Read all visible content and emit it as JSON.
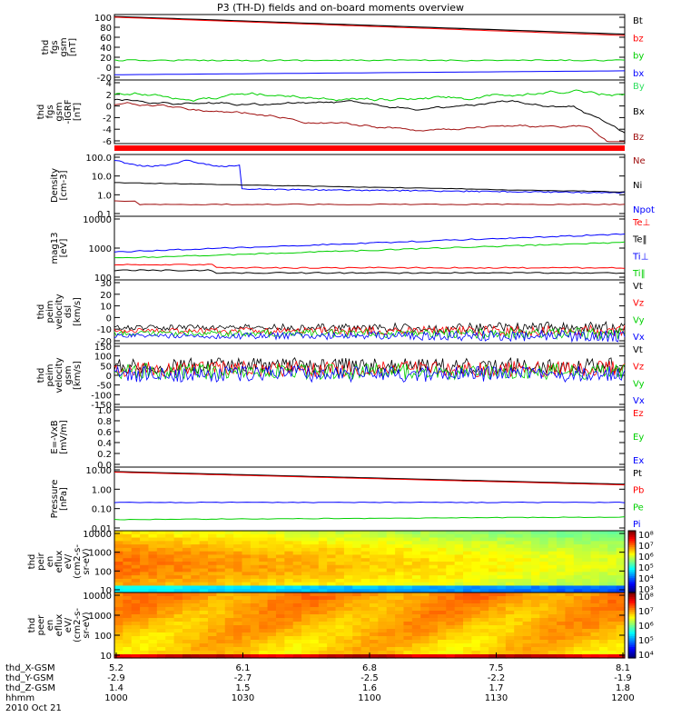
{
  "title": "P3 (TH-D) fields and on-board moments overview",
  "colors": {
    "black": "#000000",
    "red": "#ff0000",
    "darkred": "#a01010",
    "green": "#00d000",
    "blue": "#0000ff",
    "brightgreen": "#30e060"
  },
  "chart_data": [
    {
      "type": "line",
      "ylabel": [
        "thd",
        "fgs",
        "gsm",
        "[nT]"
      ],
      "yticks": [
        "100",
        "80",
        "60",
        "40",
        "20",
        "0",
        "-20"
      ],
      "ylim": [
        -30,
        100
      ],
      "legend": [
        {
          "name": "Bt",
          "color": "#000000"
        },
        {
          "name": "bz",
          "color": "#ff0000"
        },
        {
          "name": "by",
          "color": "#00d000"
        },
        {
          "name": "bx",
          "color": "#0000ff"
        }
      ]
    },
    {
      "type": "line",
      "ylabel": [
        "thd",
        "fgs",
        "gsm",
        "-IGRF",
        "[nT]"
      ],
      "yticks": [
        "4",
        "2",
        "0",
        "-2",
        "-4",
        "-6"
      ],
      "ylim": [
        -7.5,
        4
      ],
      "legend": [
        {
          "name": "By",
          "color": "#30e060"
        },
        {
          "name": "Bx",
          "color": "#000000"
        },
        {
          "name": "Bz",
          "color": "#a01010"
        }
      ]
    },
    {
      "type": "line",
      "ylabel": [
        "Density",
        "[cm-3]"
      ],
      "yticks": [
        "100.0",
        "10.0",
        "1.0",
        "0.1"
      ],
      "ylim": [
        0.07,
        300
      ],
      "legend": [
        {
          "name": "Ne",
          "color": "#a01010"
        },
        {
          "name": "Ni",
          "color": "#000000"
        },
        {
          "name": "Npot",
          "color": "#0000ff"
        }
      ]
    },
    {
      "type": "line",
      "ylabel": [
        "mag13",
        "[eV]"
      ],
      "yticks": [
        "10000",
        "1000",
        "100"
      ],
      "ylim": [
        100,
        13000
      ],
      "legend": [
        {
          "name": "Te⊥",
          "color": "#ff0000"
        },
        {
          "name": "Te‖",
          "color": "#000000"
        },
        {
          "name": "Ti⊥",
          "color": "#0000ff"
        },
        {
          "name": "Ti‖",
          "color": "#00d000"
        }
      ]
    },
    {
      "type": "line",
      "ylabel": [
        "thd",
        "peim",
        "velocity",
        "dsl",
        "[km/s]"
      ],
      "yticks": [
        "30",
        "20",
        "10",
        "0",
        "-10",
        "-20"
      ],
      "ylim": [
        -20,
        30
      ],
      "legend": [
        {
          "name": "Vt",
          "color": "#000000"
        },
        {
          "name": "Vz",
          "color": "#ff0000"
        },
        {
          "name": "Vy",
          "color": "#00d000"
        },
        {
          "name": "Vx",
          "color": "#0000ff"
        }
      ]
    },
    {
      "type": "line",
      "ylabel": [
        "thd",
        "peim",
        "velocity",
        "gsm",
        "[km/s]"
      ],
      "yticks": [
        "150",
        "100",
        "50",
        "0",
        "-50",
        "-100",
        "-150"
      ],
      "ylim": [
        -150,
        150
      ],
      "legend": [
        {
          "name": "Vt",
          "color": "#000000"
        },
        {
          "name": "Vz",
          "color": "#ff0000"
        },
        {
          "name": "Vy",
          "color": "#00d000"
        },
        {
          "name": "Vx",
          "color": "#0000ff"
        }
      ]
    },
    {
      "type": "line",
      "ylabel": [
        "E=-VxB",
        "[mV/m]"
      ],
      "yticks": [
        "1.0",
        "0.8",
        "0.6",
        "0.4",
        "0.2",
        "0.0"
      ],
      "ylim": [
        0,
        1
      ],
      "legend": [
        {
          "name": "Ez",
          "color": "#ff0000"
        },
        {
          "name": "Ey",
          "color": "#00d000"
        },
        {
          "name": "Ex",
          "color": "#0000ff"
        }
      ]
    },
    {
      "type": "line",
      "ylabel": [
        "Pressure",
        "[nPa]"
      ],
      "yticks": [
        "10.00",
        "1.00",
        "0.10",
        "0.01"
      ],
      "ylim": [
        0.006,
        13
      ],
      "legend": [
        {
          "name": "Pt",
          "color": "#000000"
        },
        {
          "name": "Pb",
          "color": "#ff0000"
        },
        {
          "name": "Pe",
          "color": "#00d000"
        },
        {
          "name": "Pi",
          "color": "#0000ff"
        }
      ]
    },
    {
      "type": "heatmap",
      "ylabel": [
        "thd",
        "peir",
        "en",
        "eflux",
        "eV/",
        "(cm2-s-",
        "sr-eV)"
      ],
      "yticks": [
        "10000",
        "1000",
        "100",
        "10"
      ],
      "colorbar": [
        "10⁸",
        "10⁷",
        "10⁶",
        "10⁵",
        "10⁴",
        "10³"
      ]
    },
    {
      "type": "heatmap",
      "ylabel": [
        "thd",
        "peer",
        "en",
        "eflux",
        "eV/",
        "(cm2-s-",
        "sr-eV)"
      ],
      "yticks": [
        "10000",
        "1000",
        "100",
        "10"
      ],
      "colorbar": [
        "10⁸",
        "10⁷",
        "10⁶",
        "10⁵",
        "10⁴"
      ]
    }
  ],
  "x_axis": {
    "row_labels": [
      "thd_X-GSM",
      "thd_Y-GSM",
      "thd_Z-GSM",
      "hhmm",
      "2010 Oct 21"
    ],
    "ticks": [
      {
        "x": "5.2",
        "y": "-2.9",
        "z": "1.4",
        "t": "1000"
      },
      {
        "x": "6.1",
        "y": "-2.7",
        "z": "1.5",
        "t": "1030"
      },
      {
        "x": "6.8",
        "y": "-2.5",
        "z": "1.6",
        "t": "1100"
      },
      {
        "x": "7.5",
        "y": "-2.2",
        "z": "1.7",
        "t": "1130"
      },
      {
        "x": "8.1",
        "y": "-1.9",
        "z": "1.8",
        "t": "1200"
      }
    ]
  }
}
